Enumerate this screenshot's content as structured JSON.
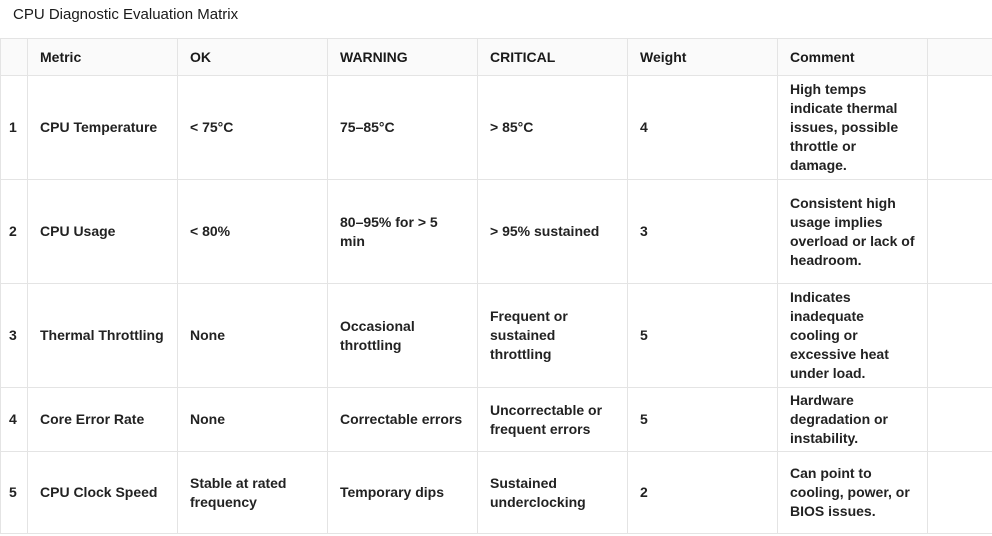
{
  "title": "CPU Diagnostic Evaluation Matrix",
  "columns": [
    "",
    "Metric",
    "OK",
    "WARNING",
    "CRITICAL",
    "Weight",
    "Comment"
  ],
  "rows": [
    {
      "index": "1",
      "metric": "CPU Temperature",
      "ok": "< 75°C",
      "warning": "75–85°C",
      "critical": "> 85°C",
      "weight": "4",
      "comment": "High temps indicate thermal issues, possible throttle or damage."
    },
    {
      "index": "2",
      "metric": "CPU Usage",
      "ok": "< 80%",
      "warning": "80–95% for > 5 min",
      "critical": "> 95% sustained",
      "weight": "3",
      "comment": "Consistent high usage implies overload or lack of headroom."
    },
    {
      "index": "3",
      "metric": "Thermal Throttling",
      "ok": "None",
      "warning": "Occasional throttling",
      "critical": "Frequent or sustained throttling",
      "weight": "5",
      "comment": "Indicates inadequate cooling or excessive heat under load."
    },
    {
      "index": "4",
      "metric": "Core Error Rate",
      "ok": "None",
      "warning": "Correctable errors",
      "critical": "Uncorrectable or frequent errors",
      "weight": "5",
      "comment": "Hardware degradation or instability."
    },
    {
      "index": "5",
      "metric": "CPU Clock Speed",
      "ok": "Stable at rated frequency",
      "warning": "Temporary dips",
      "critical": "Sustained underclocking",
      "weight": "2",
      "comment": "Can point to cooling, power, or BIOS issues."
    }
  ]
}
